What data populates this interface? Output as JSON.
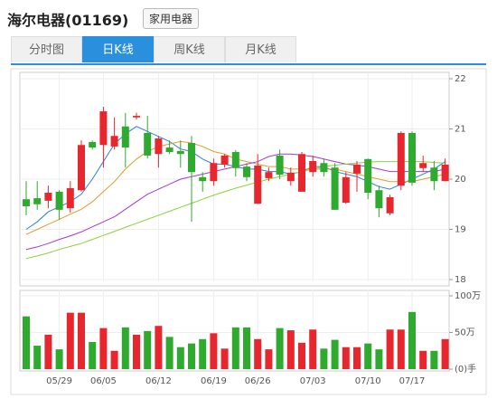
{
  "header": {
    "title": "海尔电器(01169)",
    "tag": "家用电器"
  },
  "tabs": [
    "分时图",
    "日K线",
    "周K线",
    "月K线"
  ],
  "active_tab": 1,
  "chart_data": [
    {
      "type": "candlestick",
      "up_color": "#e8262d",
      "down_color": "#2eaa2e",
      "grid": true,
      "ylim": [
        18,
        22
      ],
      "yticks": [
        18,
        19,
        20,
        21,
        22
      ],
      "open": [
        19.6,
        19.62,
        19.57,
        19.75,
        19.42,
        19.78,
        20.74,
        20.68,
        20.65,
        21.05,
        21.23,
        20.92,
        20.5,
        20.63,
        20.56,
        20.72,
        20.04,
        19.96,
        20.29,
        20.54,
        20.25,
        19.51,
        20.02,
        20.47,
        19.96,
        19.75,
        20.14,
        20.32,
        20.23,
        19.53,
        20.11,
        20.4,
        19.78,
        19.32,
        19.87,
        20.92,
        20.22,
        20.23,
        19.96
      ],
      "high": [
        19.96,
        19.96,
        19.87,
        19.78,
        19.96,
        20.77,
        20.77,
        21.44,
        21.23,
        21.32,
        21.32,
        21.26,
        20.86,
        20.77,
        20.77,
        20.86,
        20.14,
        20.41,
        20.5,
        20.58,
        20.32,
        20.5,
        20.23,
        20.59,
        20.23,
        20.54,
        20.47,
        20.41,
        20.32,
        20.14,
        20.36,
        20.41,
        19.87,
        19.69,
        20.95,
        20.95,
        20.47,
        20.36,
        20.41
      ],
      "low": [
        19.28,
        19.39,
        19.42,
        19.19,
        19.33,
        19.75,
        20.59,
        20.23,
        20.59,
        20.23,
        21.19,
        20.41,
        20.23,
        20.5,
        20.23,
        19.15,
        19.75,
        19.87,
        20.23,
        20.05,
        19.96,
        19.51,
        19.96,
        20.0,
        19.87,
        19.75,
        20.05,
        20.05,
        19.39,
        19.51,
        19.75,
        19.6,
        19.24,
        19.28,
        19.78,
        19.87,
        20.14,
        19.78,
        19.96
      ],
      "close": [
        19.46,
        19.5,
        19.73,
        19.39,
        19.82,
        20.68,
        20.63,
        21.35,
        20.86,
        20.63,
        21.26,
        20.47,
        20.81,
        20.54,
        20.5,
        20.14,
        19.96,
        20.32,
        20.47,
        20.22,
        20.04,
        20.27,
        20.14,
        20.09,
        20.13,
        20.5,
        20.36,
        20.14,
        19.39,
        20.04,
        20.29,
        19.73,
        19.42,
        19.64,
        20.92,
        19.93,
        20.32,
        19.96,
        20.29
      ],
      "lines": [
        {
          "color": "#2f7fd8",
          "values": [
            19.0,
            19.15,
            19.35,
            19.45,
            19.55,
            19.7,
            20.0,
            20.35,
            20.7,
            20.9,
            21.05,
            20.95,
            20.85,
            20.75,
            20.6,
            20.55,
            20.4,
            20.3,
            20.3,
            20.25,
            20.2,
            20.2,
            20.15,
            20.15,
            20.1,
            20.15,
            20.25,
            20.25,
            20.15,
            20.1,
            20.05,
            19.95,
            19.85,
            19.8,
            19.9,
            20.0,
            20.1,
            20.2,
            20.35
          ]
        },
        {
          "color": "#e39b2c",
          "values": [
            18.9,
            19.0,
            19.1,
            19.2,
            19.3,
            19.4,
            19.55,
            19.75,
            19.95,
            20.2,
            20.4,
            20.55,
            20.65,
            20.7,
            20.75,
            20.72,
            20.65,
            20.55,
            20.5,
            20.4,
            20.35,
            20.3,
            20.25,
            20.25,
            20.2,
            20.2,
            20.2,
            20.2,
            20.2,
            20.15,
            20.1,
            20.05,
            20.0,
            19.95,
            19.95,
            19.95,
            20.0,
            20.05,
            20.1
          ]
        },
        {
          "color": "#a23ad6",
          "values": [
            18.6,
            18.65,
            18.72,
            18.8,
            18.87,
            18.95,
            19.05,
            19.15,
            19.25,
            19.4,
            19.55,
            19.7,
            19.8,
            19.9,
            20.0,
            20.05,
            20.1,
            20.15,
            20.2,
            20.25,
            20.3,
            20.35,
            20.45,
            20.5,
            20.5,
            20.48,
            20.45,
            20.4,
            20.35,
            20.3,
            20.28,
            20.25,
            20.2,
            20.15,
            20.15,
            20.15,
            20.15,
            20.15,
            20.2
          ]
        },
        {
          "color": "#8ed13a",
          "values": [
            18.42,
            18.47,
            18.53,
            18.6,
            18.66,
            18.72,
            18.8,
            18.88,
            18.96,
            19.04,
            19.12,
            19.2,
            19.28,
            19.36,
            19.44,
            19.52,
            19.6,
            19.68,
            19.75,
            19.82,
            19.88,
            19.94,
            20.0,
            20.05,
            20.1,
            20.15,
            20.2,
            20.25,
            20.28,
            20.3,
            20.32,
            20.34,
            20.35,
            20.35,
            20.35,
            20.35,
            20.35,
            20.33,
            20.32
          ]
        }
      ]
    },
    {
      "type": "bar",
      "grid": true,
      "categories": [
        null,
        null,
        null,
        "05/29",
        null,
        null,
        null,
        "06/05",
        null,
        null,
        null,
        null,
        "06/12",
        null,
        null,
        null,
        null,
        "06/19",
        null,
        null,
        null,
        "06/26",
        null,
        null,
        null,
        null,
        "07/03",
        null,
        null,
        null,
        null,
        "07/10",
        null,
        null,
        null,
        "07/17",
        null,
        null,
        null
      ],
      "values": [
        72,
        32,
        47,
        27,
        77,
        77,
        37,
        56,
        25,
        57,
        47,
        52,
        59,
        44,
        30,
        35,
        41,
        49,
        28,
        57,
        57,
        41,
        27,
        56,
        53,
        36,
        54,
        28,
        40,
        30,
        30,
        35,
        27,
        54,
        54,
        78,
        25,
        25,
        41
      ],
      "ylim": [
        0,
        100
      ],
      "yticks": [
        {
          "value": 0,
          "label": "(0)手"
        },
        {
          "value": 50,
          "label": "50万"
        },
        {
          "value": 100,
          "label": "100万"
        }
      ]
    }
  ]
}
